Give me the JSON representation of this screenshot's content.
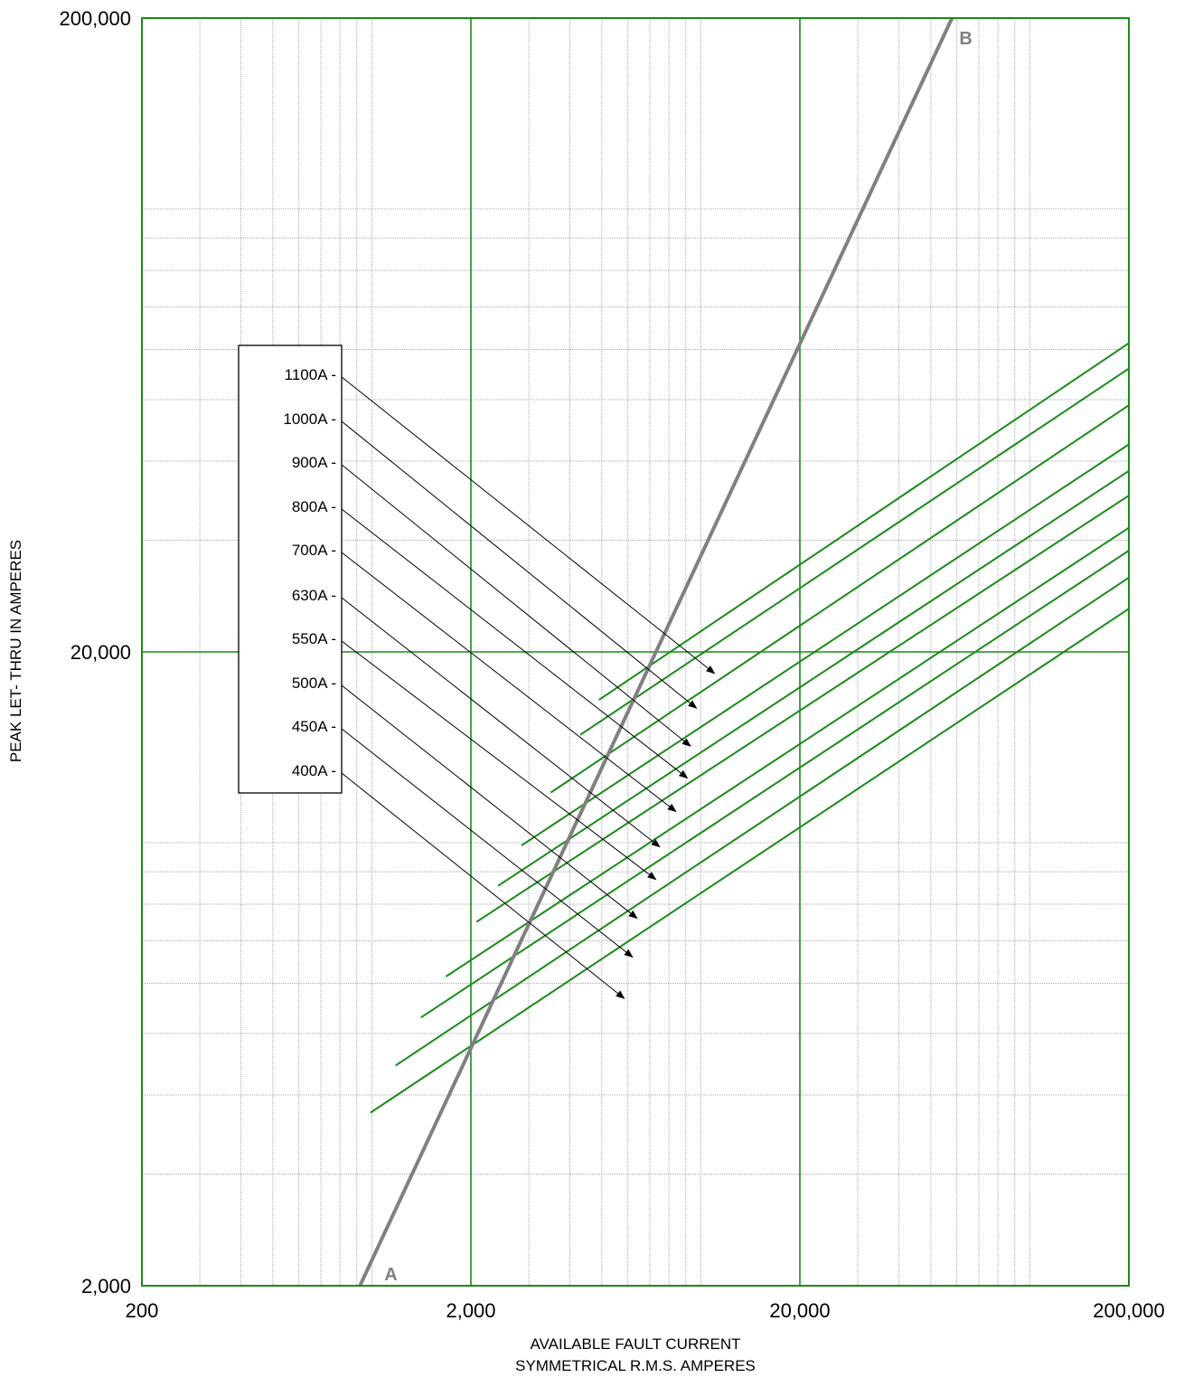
{
  "chart_data": {
    "type": "line",
    "xlabel": [
      "AVAILABLE FAULT CURRENT",
      "SYMMETRICAL  R.M.S.  AMPERES"
    ],
    "ylabel": "PEAK LET- THRU IN AMPERES",
    "x_scale": "log",
    "y_scale": "log",
    "xlim": [
      200,
      200000
    ],
    "ylim": [
      2000,
      200000
    ],
    "x_ticks": [
      {
        "value": 200,
        "label": "200"
      },
      {
        "value": 2000,
        "label": "2,000"
      },
      {
        "value": 20000,
        "label": "20,000"
      },
      {
        "value": 200000,
        "label": "200,000"
      }
    ],
    "y_ticks": [
      {
        "value": 2000,
        "label": "2,000"
      },
      {
        "value": 20000,
        "label": "20,000"
      },
      {
        "value": 200000,
        "label": "200,000"
      }
    ],
    "grid": true,
    "reference_line": {
      "label_start": "A",
      "label_end": "B",
      "points": [
        [
          920,
          2000
        ],
        [
          58000,
          200000
        ]
      ],
      "color": "#808080"
    },
    "series": [
      {
        "name": "1100A",
        "x": [
          4900,
          200000
        ],
        "y": [
          16800,
          61400
        ]
      },
      {
        "name": "1000A",
        "x": [
          4300,
          200000
        ],
        "y": [
          14800,
          56000
        ]
      },
      {
        "name": "900A",
        "x": [
          3500,
          200000
        ],
        "y": [
          12000,
          49000
        ]
      },
      {
        "name": "800A",
        "x": [
          2850,
          200000
        ],
        "y": [
          9900,
          42500
        ]
      },
      {
        "name": "700A",
        "x": [
          2420,
          200000
        ],
        "y": [
          8550,
          38600
        ]
      },
      {
        "name": "630A",
        "x": [
          2080,
          200000
        ],
        "y": [
          7500,
          35300
        ]
      },
      {
        "name": "550A",
        "x": [
          1680,
          200000
        ],
        "y": [
          6150,
          31400
        ]
      },
      {
        "name": "500A",
        "x": [
          1410,
          200000
        ],
        "y": [
          5300,
          28900
        ]
      },
      {
        "name": "450A",
        "x": [
          1180,
          200000
        ],
        "y": [
          4450,
          26200
        ]
      },
      {
        "name": "400A",
        "x": [
          990,
          200000
        ],
        "y": [
          3750,
          23400
        ]
      }
    ],
    "series_color": "#1a8a1a",
    "legend_title": "",
    "legend_placement": "left",
    "legend_entries": [
      "1100A -",
      "1000A -",
      "900A -",
      "800A -",
      "700A -",
      "630A -",
      "550A -",
      "500A -",
      "450A -",
      "400A -"
    ],
    "arrow_targets": [
      {
        "x": 11000,
        "y": 18500
      },
      {
        "x": 9700,
        "y": 16300
      },
      {
        "x": 9300,
        "y": 14200
      },
      {
        "x": 9100,
        "y": 12650
      },
      {
        "x": 8400,
        "y": 11200
      },
      {
        "x": 7500,
        "y": 9850
      },
      {
        "x": 7300,
        "y": 8750
      },
      {
        "x": 6400,
        "y": 7600
      },
      {
        "x": 6200,
        "y": 6600
      },
      {
        "x": 5850,
        "y": 5680
      }
    ]
  }
}
